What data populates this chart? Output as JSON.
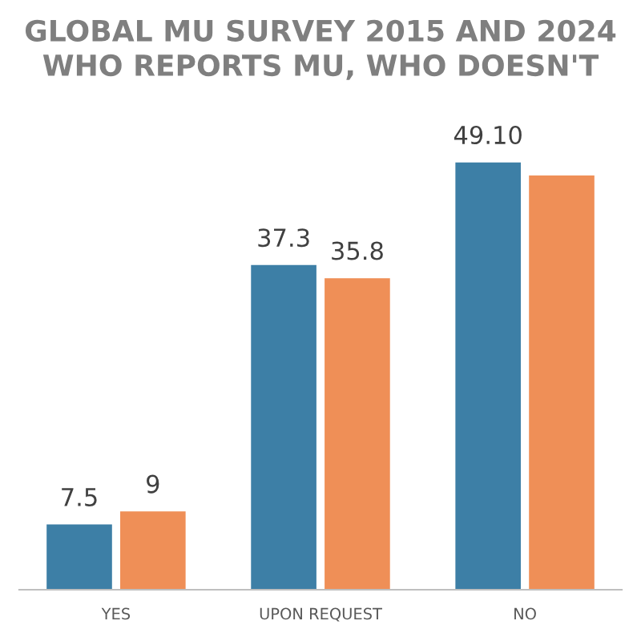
{
  "chart_data": {
    "type": "bar",
    "title": "GLOBAL MU SURVEY 2015 AND 2024\nWHO REPORTS MU, WHO DOESN'T",
    "categories": [
      "YES",
      "UPON REQUEST",
      "NO"
    ],
    "series": [
      {
        "color": "#3d7fa6",
        "values": [
          7.5,
          37.3,
          49.1
        ],
        "value_labels": [
          "7.5",
          "37.3",
          "49.10"
        ]
      },
      {
        "color": "#ef8f57",
        "values": [
          9,
          35.8,
          47.6
        ],
        "value_labels": [
          "9",
          "35.8",
          null
        ]
      }
    ],
    "legend": false,
    "grid": false
  }
}
